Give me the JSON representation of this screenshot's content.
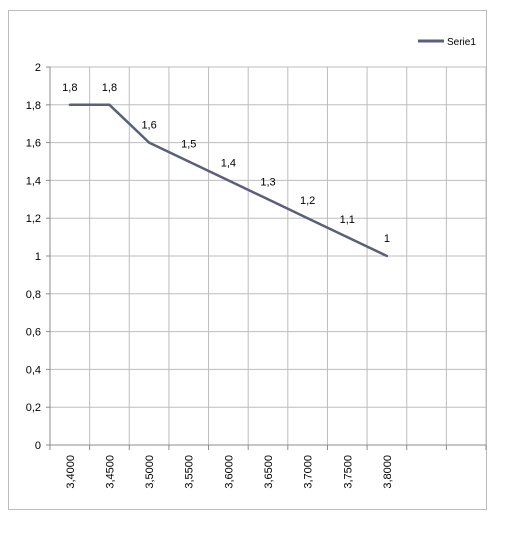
{
  "chart_data": {
    "type": "line",
    "x": [
      "3,4000",
      "3,4500",
      "3,5000",
      "3,5500",
      "3,6000",
      "3,6500",
      "3,7000",
      "3,7500",
      "3,8000"
    ],
    "series": [
      {
        "name": "Serie1",
        "values": [
          1.8,
          1.8,
          1.6,
          1.5,
          1.4,
          1.3,
          1.2,
          1.1,
          1.0
        ],
        "data_labels": [
          "1,8",
          "1,8",
          "1,6",
          "1,5",
          "1,4",
          "1,3",
          "1,2",
          "1,1",
          "1"
        ],
        "color": "#5b5f7b"
      }
    ],
    "y_ticks": [
      "0",
      "0,2",
      "0,4",
      "0,6",
      "0,8",
      "1",
      "1,2",
      "1,4",
      "1,6",
      "1,8",
      "2"
    ],
    "ylim": [
      0,
      2
    ],
    "grid": true,
    "legend": "top-right",
    "title": "",
    "xlabel": "",
    "ylabel": ""
  },
  "colors": {
    "grid": "#bdbdbd",
    "axis": "#8c8c8c",
    "line": "#5b5f7b"
  }
}
